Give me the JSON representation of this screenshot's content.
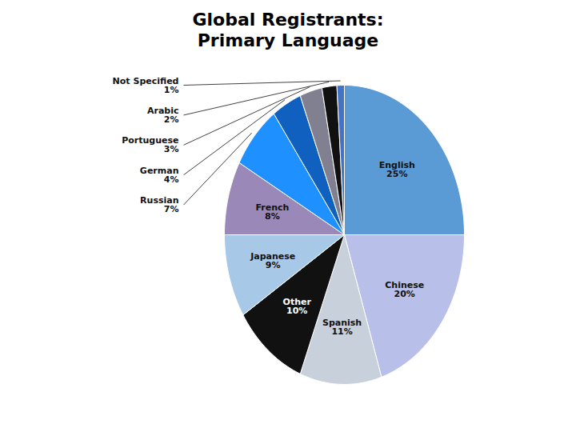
{
  "chart_data": {
    "type": "pie",
    "title": "Global Registrants:\nPrimary Language",
    "categories": [
      "English",
      "Chinese",
      "Spanish",
      "Other",
      "Japanese",
      "French",
      "Russian",
      "German",
      "Portuguese",
      "Arabic",
      "Not Specified"
    ],
    "values": [
      25,
      20,
      11,
      10,
      9,
      8,
      7,
      4,
      3,
      2,
      1
    ],
    "value_labels": [
      "25%",
      "20%",
      "11%",
      "10%",
      "9%",
      "8%",
      "7%",
      "4%",
      "3%",
      "2%",
      "1%"
    ],
    "colors": [
      "#5b9bd5",
      "#b8bfe8",
      "#c8d0dc",
      "#111111",
      "#a8c8e8",
      "#9988b8",
      "#1e90ff",
      "#1060c0",
      "#808090",
      "#111111",
      "#4472c4"
    ],
    "data_labels": true
  }
}
